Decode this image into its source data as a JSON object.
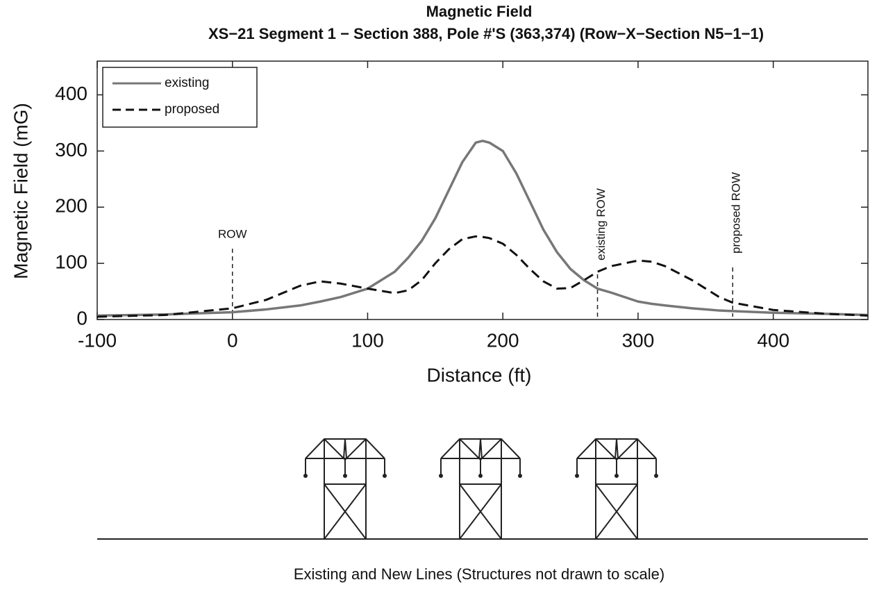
{
  "chart_data": {
    "type": "line",
    "title": "Magnetic Field",
    "subtitle": "XS−21 Segment 1 − Section 388, Pole #'S (363,374) (Row−X−Section N5−1−1)",
    "x_label": "Distance (ft)",
    "y_label": "Magnetic Field (mG)",
    "x": [
      -100,
      -50,
      0,
      25,
      50,
      65,
      80,
      100,
      120,
      130,
      140,
      150,
      160,
      170,
      180,
      185,
      190,
      200,
      210,
      220,
      230,
      240,
      250,
      260,
      270,
      280,
      300,
      310,
      320,
      340,
      360,
      370,
      400,
      440,
      470
    ],
    "series": [
      {
        "name": "existing",
        "color": "#777777",
        "line_style": "solid",
        "values": [
          7,
          9,
          13,
          18,
          25,
          32,
          40,
          55,
          85,
          110,
          140,
          180,
          230,
          280,
          315,
          318,
          315,
          300,
          260,
          210,
          160,
          120,
          90,
          70,
          55,
          48,
          32,
          28,
          25,
          20,
          16,
          15,
          12,
          10,
          8
        ]
      },
      {
        "name": "proposed",
        "color": "#111111",
        "line_style": "dashed",
        "values": [
          5,
          8,
          20,
          35,
          60,
          68,
          64,
          55,
          47,
          52,
          70,
          100,
          125,
          143,
          148,
          147,
          145,
          135,
          115,
          90,
          68,
          55,
          56,
          70,
          85,
          95,
          105,
          103,
          95,
          70,
          40,
          30,
          17,
          10,
          7
        ]
      }
    ],
    "annotations": [
      {
        "x": 0,
        "label": "ROW"
      },
      {
        "x": 270,
        "label": "existing ROW"
      },
      {
        "x": 370,
        "label": "proposed ROW"
      }
    ],
    "xlim": [
      -100,
      470
    ],
    "ylim": [
      0,
      460
    ],
    "xticks": [
      -100,
      0,
      100,
      200,
      300,
      400
    ],
    "yticks": [
      0,
      100,
      200,
      300,
      400
    ],
    "legend": "upper left",
    "caption": "Existing and New Lines (Structures not drawn to scale)"
  }
}
